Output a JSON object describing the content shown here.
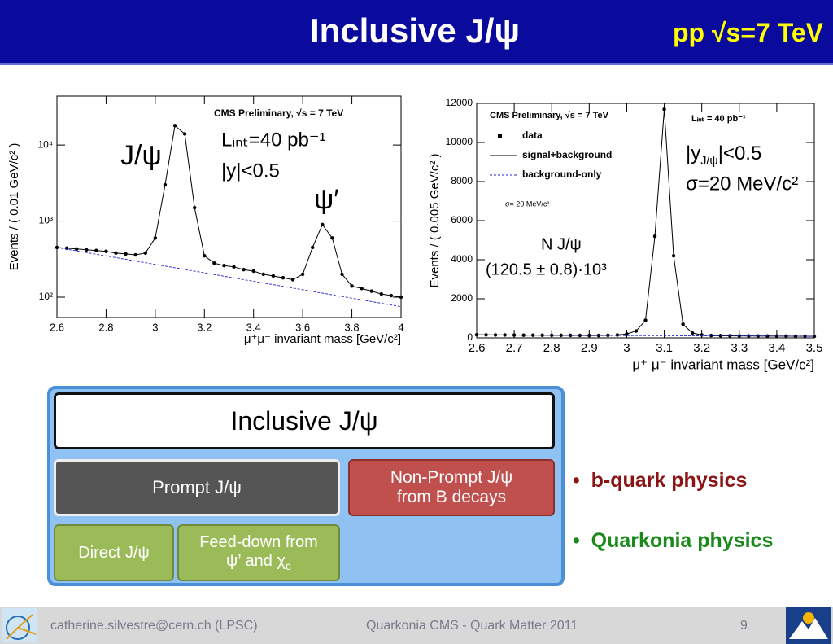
{
  "header": {
    "title": "Inclusive J/ψ",
    "subtitle": "pp √s=7 TeV"
  },
  "chart_data": [
    {
      "type": "scatter",
      "log_y": true,
      "y_label": "Events / ( 0.01 GeV/c² )",
      "x_label": "μ⁺μ⁻ invariant mass [GeV/c²]",
      "xlim": [
        2.6,
        4
      ],
      "xticks": [
        2.6,
        2.8,
        3,
        3.2,
        3.4,
        3.6,
        3.8,
        4
      ],
      "ylim": [
        54,
        44000
      ],
      "yticks": [
        {
          "value": 100,
          "label": "10²"
        },
        {
          "value": 1000,
          "label": "10³"
        },
        {
          "value": 10000,
          "label": "10⁴"
        }
      ],
      "annotations": {
        "cms": "CMS Preliminary, √s = 7 TeV",
        "jpsi": "J/ψ",
        "luminosity": "Lᵢₙₜ=40 pb⁻¹",
        "rapidity": "|y|<0.5",
        "psi2s": "ψ′"
      },
      "series": [
        {
          "style": "marker",
          "color": "#000000",
          "x": [
            2.6,
            2.64,
            2.68,
            2.72,
            2.76,
            2.8,
            2.84,
            2.88,
            2.92,
            2.96,
            3.0,
            3.04,
            3.08,
            3.12,
            3.16,
            3.2,
            3.24,
            3.28,
            3.32,
            3.36,
            3.4,
            3.44,
            3.48,
            3.52,
            3.56,
            3.6,
            3.64,
            3.68,
            3.72,
            3.76,
            3.8,
            3.84,
            3.88,
            3.92,
            3.96,
            4.0
          ],
          "values": [
            450,
            440,
            430,
            420,
            410,
            400,
            380,
            370,
            360,
            380,
            600,
            3000,
            18000,
            14000,
            1500,
            350,
            280,
            260,
            250,
            230,
            220,
            200,
            190,
            180,
            170,
            200,
            450,
            900,
            600,
            200,
            140,
            130,
            120,
            110,
            105,
            100
          ]
        },
        {
          "style": "line",
          "color": "#000000",
          "x": [
            2.6,
            2.64,
            2.68,
            2.72,
            2.76,
            2.8,
            2.84,
            2.88,
            2.92,
            2.96,
            3.0,
            3.04,
            3.08,
            3.12,
            3.16,
            3.2,
            3.24,
            3.28,
            3.32,
            3.36,
            3.4,
            3.44,
            3.48,
            3.52,
            3.56,
            3.6,
            3.64,
            3.68,
            3.72,
            3.76,
            3.8,
            3.84,
            3.88,
            3.92,
            3.96,
            4.0
          ],
          "values": [
            450,
            440,
            430,
            420,
            410,
            400,
            380,
            370,
            360,
            380,
            600,
            3000,
            18000,
            14000,
            1500,
            350,
            280,
            260,
            250,
            230,
            220,
            200,
            190,
            180,
            170,
            200,
            450,
            900,
            600,
            200,
            140,
            130,
            120,
            110,
            105,
            100
          ]
        },
        {
          "style": "dashed",
          "color": "#2020cc",
          "x": [
            2.6,
            4
          ],
          "values": [
            450,
            75
          ]
        }
      ]
    },
    {
      "type": "scatter",
      "log_y": false,
      "y_label": "Events / ( 0.005 GeV/c² )",
      "x_label": "μ⁺ μ⁻ invariant mass [GeV/c²]",
      "xlim": [
        2.6,
        3.5
      ],
      "xticks": [
        2.6,
        2.7,
        2.8,
        2.9,
        3,
        3.1,
        3.2,
        3.3,
        3.4,
        3.5
      ],
      "ylim": [
        0,
        12000
      ],
      "yticks": [
        0,
        2000,
        4000,
        6000,
        8000,
        10000,
        12000
      ],
      "legend": "top-left",
      "annotations": {
        "cms": "CMS Preliminary, √s = 7 TeV",
        "luminosity": "Lᵢₙₜ = 40 pb⁻¹",
        "resolution_small": "σ= 20 MeV/c²",
        "rapidity": [
          {
            "text": "|y"
          },
          {
            "text": "J/ψ",
            "shift": "sub"
          },
          {
            "text": "|<0.5"
          }
        ],
        "resolution": "σ=20 MeV/c²",
        "yield_label": "N J/ψ",
        "yield": "(120.5 ± 0.8)·10³"
      },
      "series": [
        {
          "name": "data",
          "style": "marker",
          "color": "#000000",
          "x": [
            2.6,
            2.625,
            2.65,
            2.675,
            2.7,
            2.725,
            2.75,
            2.775,
            2.8,
            2.825,
            2.85,
            2.875,
            2.9,
            2.925,
            2.95,
            2.975,
            3.0,
            3.025,
            3.05,
            3.075,
            3.1,
            3.125,
            3.15,
            3.175,
            3.2,
            3.225,
            3.25,
            3.275,
            3.3,
            3.325,
            3.35,
            3.375,
            3.4,
            3.425,
            3.45,
            3.475,
            3.5
          ],
          "values": [
            160,
            155,
            150,
            150,
            145,
            140,
            140,
            135,
            130,
            130,
            125,
            125,
            120,
            120,
            130,
            150,
            200,
            350,
            900,
            5200,
            11700,
            4200,
            700,
            250,
            150,
            120,
            110,
            105,
            100,
            100,
            95,
            95,
            90,
            90,
            85,
            85,
            80
          ]
        },
        {
          "name": "signal+background",
          "style": "line",
          "color": "#000000",
          "x": [
            2.6,
            2.625,
            2.65,
            2.675,
            2.7,
            2.725,
            2.75,
            2.775,
            2.8,
            2.825,
            2.85,
            2.875,
            2.9,
            2.925,
            2.95,
            2.975,
            3.0,
            3.025,
            3.05,
            3.075,
            3.1,
            3.125,
            3.15,
            3.175,
            3.2,
            3.225,
            3.25,
            3.275,
            3.3,
            3.325,
            3.35,
            3.375,
            3.4,
            3.425,
            3.45,
            3.475,
            3.5
          ],
          "values": [
            160,
            155,
            150,
            150,
            145,
            140,
            140,
            135,
            130,
            130,
            125,
            125,
            120,
            120,
            130,
            150,
            200,
            350,
            900,
            5200,
            11700,
            4200,
            700,
            250,
            150,
            120,
            110,
            105,
            100,
            100,
            95,
            95,
            90,
            90,
            85,
            85,
            80
          ]
        },
        {
          "name": "background-only",
          "style": "dashed",
          "color": "#2020cc",
          "x": [
            2.6,
            3.5
          ],
          "values": [
            150,
            80
          ]
        }
      ]
    }
  ],
  "diagram": {
    "nodes": [
      {
        "label": [
          "Inclusive J/ψ"
        ]
      },
      {
        "label": [
          "Prompt J/ψ"
        ]
      },
      {
        "label": [
          "Non-Prompt J/ψ",
          "from B decays"
        ]
      },
      {
        "label": [
          "Direct J/ψ"
        ]
      },
      {
        "label": [
          "Feed-down from",
          "ψ’ and χ"
        ],
        "label_sub": "c"
      }
    ]
  },
  "bullets": [
    {
      "text": "b-quark physics",
      "color": "#8b1414"
    },
    {
      "text": "Quarkonia physics",
      "color": "#1a8a1a"
    }
  ],
  "footer": {
    "author": "catherine.silvestre@cern.ch (LPSC)",
    "event": "Quarkonia CMS - Quark Matter 2011",
    "page": 9
  }
}
